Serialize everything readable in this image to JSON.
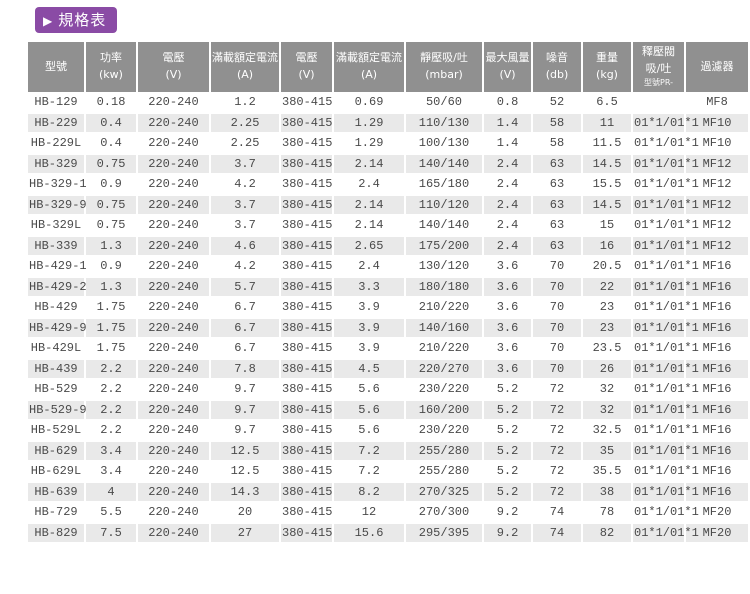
{
  "colors": {
    "accent": "#8a4ba5",
    "header_bg": "#909090",
    "header_text": "#ffffff",
    "row_alt_bg": "#e9e9e9",
    "cell_text": "#4a4a4a"
  },
  "title": {
    "icon_glyph": "▶",
    "icon_name": "play-triangle-icon",
    "text": "規格表"
  },
  "table": {
    "columns": [
      {
        "key": "model",
        "label": "型號",
        "unit": "",
        "sub": ""
      },
      {
        "key": "power",
        "label": "功率",
        "unit": "(kw)",
        "sub": ""
      },
      {
        "key": "voltage-1",
        "label": "電壓",
        "unit": "(V)",
        "sub": ""
      },
      {
        "key": "rated-current-1",
        "label": "滿載額定電流",
        "unit": "(A)",
        "sub": ""
      },
      {
        "key": "voltage-2",
        "label": "電壓",
        "unit": "(V)",
        "sub": ""
      },
      {
        "key": "rated-current-2",
        "label": "滿載額定電流",
        "unit": "(A)",
        "sub": ""
      },
      {
        "key": "static-pressure",
        "label": "靜壓吸/吐",
        "unit": "(mbar)",
        "sub": ""
      },
      {
        "key": "max-airflow",
        "label": "最大風量",
        "unit": "(V)",
        "sub": ""
      },
      {
        "key": "noise",
        "label": "噪音",
        "unit": "(db)",
        "sub": ""
      },
      {
        "key": "weight",
        "label": "重量",
        "unit": "(kg)",
        "sub": ""
      },
      {
        "key": "relief-valve",
        "label": "釋壓閥",
        "unit": "吸/吐",
        "sub": "型號PR-"
      },
      {
        "key": "filter",
        "label": "過濾器",
        "unit": "",
        "sub": ""
      }
    ],
    "rows": [
      [
        "HB-129",
        "0.18",
        "220-240",
        "1.2",
        "380-415",
        "0.69",
        "50/60",
        "0.8",
        "52",
        "6.5",
        "",
        "MF8"
      ],
      [
        "HB-229",
        "0.4",
        "220-240",
        "2.25",
        "380-415",
        "1.29",
        "110/130",
        "1.4",
        "58",
        "11",
        "01*1/01*1",
        "MF10"
      ],
      [
        "HB-229L",
        "0.4",
        "220-240",
        "2.25",
        "380-415",
        "1.29",
        "100/130",
        "1.4",
        "58",
        "11.5",
        "01*1/01*1",
        "MF10"
      ],
      [
        "HB-329",
        "0.75",
        "220-240",
        "3.7",
        "380-415",
        "2.14",
        "140/140",
        "2.4",
        "63",
        "14.5",
        "01*1/01*1",
        "MF12"
      ],
      [
        "HB-329-1",
        "0.9",
        "220-240",
        "4.2",
        "380-415",
        "2.4",
        "165/180",
        "2.4",
        "63",
        "15.5",
        "01*1/01*1",
        "MF12"
      ],
      [
        "HB-329-9",
        "0.75",
        "220-240",
        "3.7",
        "380-415",
        "2.14",
        "110/120",
        "2.4",
        "63",
        "14.5",
        "01*1/01*1",
        "MF12"
      ],
      [
        "HB-329L",
        "0.75",
        "220-240",
        "3.7",
        "380-415",
        "2.14",
        "140/140",
        "2.4",
        "63",
        "15",
        "01*1/01*1",
        "MF12"
      ],
      [
        "HB-339",
        "1.3",
        "220-240",
        "4.6",
        "380-415",
        "2.65",
        "175/200",
        "2.4",
        "63",
        "16",
        "01*1/01*1",
        "MF12"
      ],
      [
        "HB-429-1",
        "0.9",
        "220-240",
        "4.2",
        "380-415",
        "2.4",
        "130/120",
        "3.6",
        "70",
        "20.5",
        "01*1/01*1",
        "MF16"
      ],
      [
        "HB-429-2",
        "1.3",
        "220-240",
        "5.7",
        "380-415",
        "3.3",
        "180/180",
        "3.6",
        "70",
        "22",
        "01*1/01*1",
        "MF16"
      ],
      [
        "HB-429",
        "1.75",
        "220-240",
        "6.7",
        "380-415",
        "3.9",
        "210/220",
        "3.6",
        "70",
        "23",
        "01*1/01*1",
        "MF16"
      ],
      [
        "HB-429-9",
        "1.75",
        "220-240",
        "6.7",
        "380-415",
        "3.9",
        "140/160",
        "3.6",
        "70",
        "23",
        "01*1/01*1",
        "MF16"
      ],
      [
        "HB-429L",
        "1.75",
        "220-240",
        "6.7",
        "380-415",
        "3.9",
        "210/220",
        "3.6",
        "70",
        "23.5",
        "01*1/01*1",
        "MF16"
      ],
      [
        "HB-439",
        "2.2",
        "220-240",
        "7.8",
        "380-415",
        "4.5",
        "220/270",
        "3.6",
        "70",
        "26",
        "01*1/01*1",
        "MF16"
      ],
      [
        "HB-529",
        "2.2",
        "220-240",
        "9.7",
        "380-415",
        "5.6",
        "230/220",
        "5.2",
        "72",
        "32",
        "01*1/01*1",
        "MF16"
      ],
      [
        "HB-529-9",
        "2.2",
        "220-240",
        "9.7",
        "380-415",
        "5.6",
        "160/200",
        "5.2",
        "72",
        "32",
        "01*1/01*1",
        "MF16"
      ],
      [
        "HB-529L",
        "2.2",
        "220-240",
        "9.7",
        "380-415",
        "5.6",
        "230/220",
        "5.2",
        "72",
        "32.5",
        "01*1/01*1",
        "MF16"
      ],
      [
        "HB-629",
        "3.4",
        "220-240",
        "12.5",
        "380-415",
        "7.2",
        "255/280",
        "5.2",
        "72",
        "35",
        "01*1/01*1",
        "MF16"
      ],
      [
        "HB-629L",
        "3.4",
        "220-240",
        "12.5",
        "380-415",
        "7.2",
        "255/280",
        "5.2",
        "72",
        "35.5",
        "01*1/01*1",
        "MF16"
      ],
      [
        "HB-639",
        "4",
        "220-240",
        "14.3",
        "380-415",
        "8.2",
        "270/325",
        "5.2",
        "72",
        "38",
        "01*1/01*1",
        "MF16"
      ],
      [
        "HB-729",
        "5.5",
        "220-240",
        "20",
        "380-415",
        "12",
        "270/300",
        "9.2",
        "74",
        "78",
        "01*1/01*1",
        "MF20"
      ],
      [
        "HB-829",
        "7.5",
        "220-240",
        "27",
        "380-415",
        "15.6",
        "295/395",
        "9.2",
        "74",
        "82",
        "01*1/01*1",
        "MF20"
      ]
    ]
  }
}
